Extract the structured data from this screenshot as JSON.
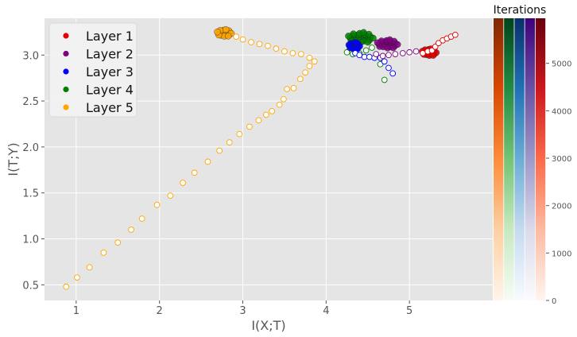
{
  "chart_data": {
    "type": "scatter",
    "xlabel": "I(X;T)",
    "ylabel": "I(T;Y)",
    "xlim": [
      0.62,
      6.0
    ],
    "ylim": [
      0.33,
      3.4
    ],
    "x_ticks": [
      1,
      2,
      3,
      4,
      5
    ],
    "y_ticks": [
      0.5,
      1.0,
      1.5,
      2.0,
      2.5,
      3.0
    ],
    "x_tick_labels": [
      "1",
      "2",
      "3",
      "4",
      "5"
    ],
    "y_tick_labels": [
      "0.5",
      "1.0",
      "1.5",
      "2.0",
      "2.5",
      "3.0"
    ],
    "grid": true,
    "legend_position": "top-left",
    "series": [
      {
        "name": "Layer 1",
        "color": "#e00000",
        "points": [
          [
            5.16,
            3.02
          ],
          [
            5.22,
            3.04
          ],
          [
            5.27,
            3.05
          ],
          [
            5.31,
            3.09
          ],
          [
            5.35,
            3.13
          ],
          [
            5.4,
            3.16
          ],
          [
            5.45,
            3.18
          ],
          [
            5.5,
            3.2
          ],
          [
            5.55,
            3.22
          ]
        ],
        "cluster": {
          "x": 5.24,
          "y": 3.03,
          "rx": 0.09,
          "ry": 0.04
        }
      },
      {
        "name": "Layer 2",
        "color": "#800080",
        "points": [
          [
            4.6,
            3.01
          ],
          [
            4.68,
            2.99
          ],
          [
            4.75,
            3.0
          ],
          [
            4.83,
            3.01
          ],
          [
            4.92,
            3.02
          ],
          [
            5.0,
            3.03
          ],
          [
            5.08,
            3.04
          ]
        ],
        "cluster": {
          "x": 4.74,
          "y": 3.12,
          "rx": 0.13,
          "ry": 0.05
        }
      },
      {
        "name": "Layer 3",
        "color": "#0000ff",
        "points": [
          [
            4.35,
            3.02
          ],
          [
            4.4,
            3.0
          ],
          [
            4.46,
            2.98
          ],
          [
            4.52,
            2.98
          ],
          [
            4.58,
            2.97
          ],
          [
            4.65,
            2.97
          ],
          [
            4.7,
            2.93
          ],
          [
            4.75,
            2.86
          ],
          [
            4.8,
            2.8
          ]
        ],
        "cluster": {
          "x": 4.34,
          "y": 3.1,
          "rx": 0.07,
          "ry": 0.04
        }
      },
      {
        "name": "Layer 4",
        "color": "#008000",
        "points": [
          [
            4.25,
            3.03
          ],
          [
            4.32,
            3.01
          ],
          [
            4.4,
            3.02
          ],
          [
            4.48,
            3.05
          ],
          [
            4.55,
            3.08
          ],
          [
            4.6,
            3.0
          ],
          [
            4.65,
            2.9
          ],
          [
            4.7,
            2.73
          ]
        ],
        "cluster": {
          "x": 4.42,
          "y": 3.19,
          "rx": 0.16,
          "ry": 0.06
        }
      },
      {
        "name": "Layer 5",
        "color": "#ffa500",
        "points": [
          [
            0.88,
            0.48
          ],
          [
            1.01,
            0.58
          ],
          [
            1.16,
            0.69
          ],
          [
            1.33,
            0.85
          ],
          [
            1.5,
            0.96
          ],
          [
            1.66,
            1.1
          ],
          [
            1.79,
            1.22
          ],
          [
            1.97,
            1.37
          ],
          [
            2.13,
            1.47
          ],
          [
            2.28,
            1.61
          ],
          [
            2.42,
            1.72
          ],
          [
            2.58,
            1.84
          ],
          [
            2.72,
            1.96
          ],
          [
            2.84,
            2.05
          ],
          [
            2.96,
            2.14
          ],
          [
            3.08,
            2.22
          ],
          [
            3.19,
            2.29
          ],
          [
            3.28,
            2.35
          ],
          [
            3.35,
            2.39
          ],
          [
            3.44,
            2.46
          ],
          [
            3.49,
            2.52
          ],
          [
            3.53,
            2.63
          ],
          [
            3.61,
            2.64
          ],
          [
            3.69,
            2.74
          ],
          [
            3.75,
            2.81
          ],
          [
            3.8,
            2.88
          ],
          [
            3.86,
            2.93
          ],
          [
            3.8,
            2.97
          ],
          [
            3.7,
            3.01
          ],
          [
            3.6,
            3.02
          ],
          [
            3.5,
            3.04
          ],
          [
            3.4,
            3.07
          ],
          [
            3.3,
            3.1
          ],
          [
            3.2,
            3.12
          ],
          [
            3.1,
            3.14
          ],
          [
            3.0,
            3.17
          ],
          [
            2.92,
            3.2
          ]
        ],
        "cluster": {
          "x": 2.78,
          "y": 3.24,
          "rx": 0.09,
          "ry": 0.04
        }
      }
    ],
    "colorbar": {
      "title": "Iterations",
      "ticks": [
        0,
        1000,
        2000,
        3000,
        4000,
        5000
      ],
      "tick_labels": [
        "0",
        "1000",
        "2000",
        "3000",
        "4000",
        "5000"
      ],
      "max": 5950,
      "colormaps": [
        "Oranges",
        "Greens",
        "Blues",
        "Purples",
        "Reds"
      ]
    }
  }
}
